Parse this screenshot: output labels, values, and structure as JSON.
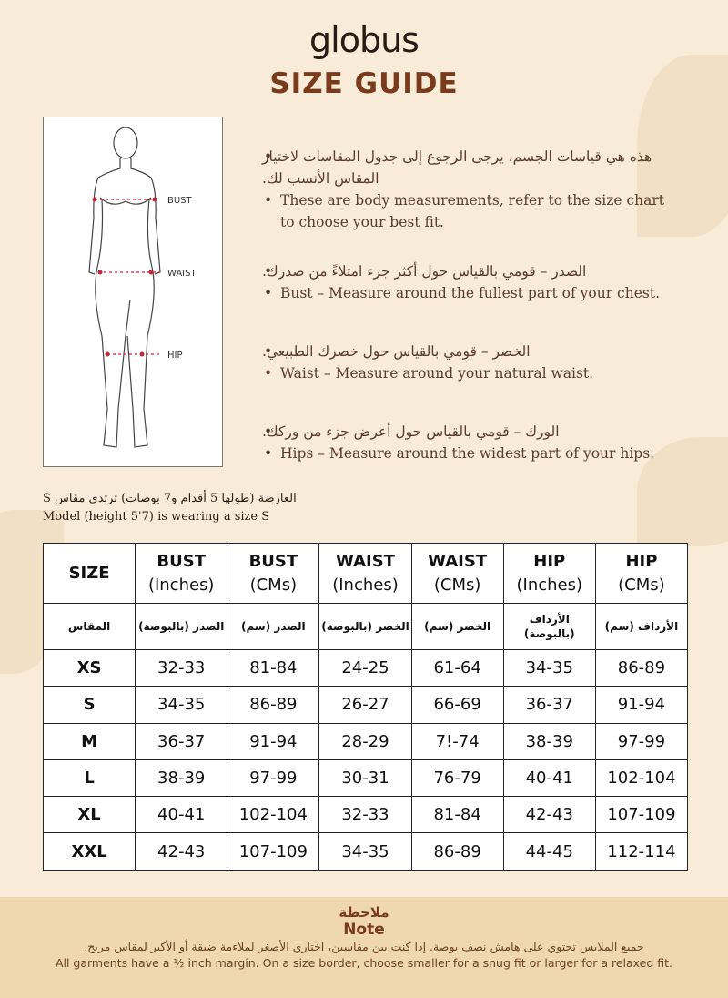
{
  "brand": "globus",
  "title": "SIZE GUIDE",
  "figure": {
    "labels": [
      "BUST",
      "WAIST",
      "HIP"
    ]
  },
  "bullets": [
    {
      "ar": "هذه هي قياسات الجسم، يرجى الرجوع إلى جدول المقاسات لاختيار المقاس الأنسب لك.",
      "en": "These are body measurements, refer to the size chart to choose your best fit."
    },
    {
      "ar": "الصدر – قومي بالقياس حول أكثر جزء امتلاءً من صدرك.",
      "en": "Bust – Measure around the fullest part of your chest."
    },
    {
      "ar": "الخصر – قومي بالقياس حول خصرك الطبيعي.",
      "en": "Waist – Measure around your natural waist."
    },
    {
      "ar": "الورك – قومي بالقياس حول أعرض جزء من وركك.",
      "en": "Hips – Measure around the widest part of your hips."
    }
  ],
  "model": {
    "ar": "العارضة (طولها 5 أقدام و7 بوصات) ترتدي مقاس S",
    "en": "Model (height 5'7) is wearing a size S"
  },
  "table": {
    "headers": [
      [
        "SIZE",
        ""
      ],
      [
        "BUST",
        "(Inches)"
      ],
      [
        "BUST",
        "(CMs)"
      ],
      [
        "WAIST",
        "(Inches)"
      ],
      [
        "WAIST",
        "(CMs)"
      ],
      [
        "HIP",
        "(Inches)"
      ],
      [
        "HIP",
        "(CMs)"
      ]
    ],
    "ar_headers": [
      "المقاس",
      "الصدر (بالبوصة)",
      "الصدر (سم)",
      "الخصر (بالبوصة)",
      "الخصر (سم)",
      "الأرداف (بالبوصة)",
      "الأرداف (سم)"
    ],
    "rows": [
      [
        "XS",
        "32-33",
        "81-84",
        "24-25",
        "61-64",
        "34-35",
        "86-89"
      ],
      [
        "S",
        "34-35",
        "86-89",
        "26-27",
        "66-69",
        "36-37",
        "91-94"
      ],
      [
        "M",
        "36-37",
        "91-94",
        "28-29",
        "7!-74",
        "38-39",
        "97-99"
      ],
      [
        "L",
        "38-39",
        "97-99",
        "30-31",
        "76-79",
        "40-41",
        "102-104"
      ],
      [
        "XL",
        "40-41",
        "102-104",
        "32-33",
        "81-84",
        "42-43",
        "107-109"
      ],
      [
        "XXL",
        "42-43",
        "107-109",
        "34-35",
        "86-89",
        "44-45",
        "112-114"
      ]
    ]
  },
  "note": {
    "title_ar": "ملاحظة",
    "title_en": "Note",
    "ar": "جميع الملابس تحتوي على هامش نصف بوصة. إذا كنت بين مقاسين، اختاري الأصغر لملاءمة ضيقة أو الأكبر لمقاس مريح.",
    "en": "All garments have a ½ inch margin. On a size border, choose smaller for a snug fit or larger for a relaxed fit."
  }
}
